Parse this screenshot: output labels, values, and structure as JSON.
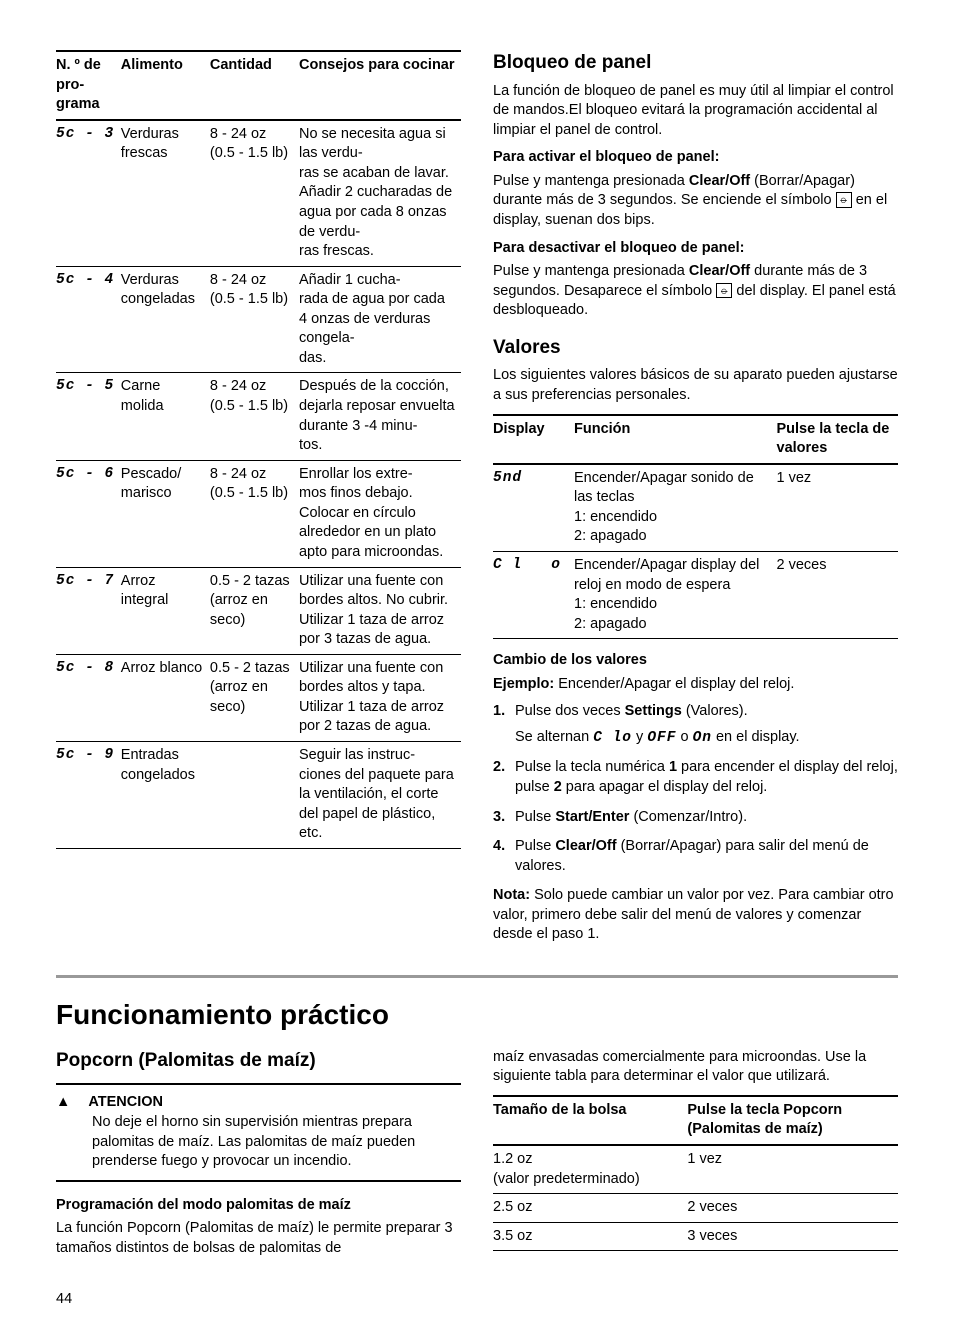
{
  "page_number": "44",
  "programs_table": {
    "headers": [
      "N. º de pro-\ngrama",
      "Alimento",
      "Cantidad",
      "Consejos para cocinar"
    ],
    "rows": [
      {
        "display": "5c - 3",
        "food": "Verduras frescas",
        "qty": "8 - 24 oz\n(0.5 - 1.5 lb)",
        "tip": "No se necesita agua si las verdu-\nras se acaban de lavar. Añadir 2 cucharadas de agua por cada 8 onzas de verdu-\nras frescas."
      },
      {
        "display": "5c - 4",
        "food": "Verduras congeladas",
        "qty": "8 - 24 oz\n(0.5 - 1.5 lb)",
        "tip": "Añadir 1 cucha-\nrada de agua por cada 4 onzas de verduras congela-\ndas."
      },
      {
        "display": "5c - 5",
        "food": "Carne molida",
        "qty": "8 - 24 oz\n(0.5 - 1.5 lb)",
        "tip": "Después de la cocción, dejarla reposar envuelta durante 3 -4 minu-\ntos."
      },
      {
        "display": "5c - 6",
        "food": "Pescado/ marisco",
        "qty": "8 - 24 oz\n(0.5 - 1.5 lb)",
        "tip": "Enrollar los extre-\nmos finos debajo. Colocar en círculo alrededor en un plato apto para microondas."
      },
      {
        "display": "5c - 7",
        "food": "Arroz integral",
        "qty": "0.5 - 2 tazas (arroz en seco)",
        "tip": "Utilizar una fuente con bordes altos. No cubrir. Utilizar 1 taza de arroz por 3 tazas de agua."
      },
      {
        "display": "5c - 8",
        "food": "Arroz blanco",
        "qty": "0.5 - 2 tazas (arroz en seco)",
        "tip": "Utilizar una fuente con bordes altos y tapa. Utilizar 1 taza de arroz por 2 tazas de agua."
      },
      {
        "display": "5c - 9",
        "food": "Entradas congelados",
        "qty": "",
        "tip": "Seguir las instruc-\nciones del paquete para la ventilación, el corte del papel de plástico, etc."
      }
    ]
  },
  "panel_lock": {
    "title": "Bloqueo de panel",
    "intro": "La función de bloqueo de panel es muy útil al limpiar el control de mandos.El bloqueo evitará la programación accidental al limpiar el panel de control.",
    "activate_head": "Para activar el bloqueo de panel:",
    "activate_pre": "Pulse y mantenga presionada ",
    "activate_bold": "Clear/Off",
    "activate_mid": " (Borrar/Apagar) durante más de 3 segundos. Se enciende el símbolo ",
    "activate_post": " en el display, suenan dos bips.",
    "deactivate_head": "Para desactivar el bloqueo de panel:",
    "deactivate_pre": "Pulse y mantenga presionada ",
    "deactivate_bold": "Clear/Off",
    "deactivate_mid": " durante más de 3 segundos. Desaparece el símbolo ",
    "deactivate_post": " del display. El panel está desbloqueado."
  },
  "valores": {
    "title": "Valores",
    "intro": "Los siguientes valores básicos de su aparato pueden ajustarse a sus preferencias personales.",
    "headers": [
      "Display",
      "Función",
      "Pulse la tecla de valores"
    ],
    "rows": [
      {
        "display": "5nd",
        "func": "Encender/Apagar sonido de las teclas\n1: encendido\n2: apagado",
        "press": "1 vez"
      },
      {
        "display": "C l   o",
        "func": "Encender/Apagar display del reloj en modo de espera\n1: encendido\n2: apagado",
        "press": "2 veces"
      }
    ],
    "cambio_head": "Cambio de los valores",
    "ejemplo_label": "Ejemplo:",
    "ejemplo_text": " Encender/Apagar el display del reloj.",
    "steps": {
      "s1a": "Pulse dos veces ",
      "s1bold": "Settings",
      "s1b": " (Valores).",
      "s1sub_a": "Se alternan ",
      "s1sub_b": " y ",
      "s1sub_c": " o ",
      "s1sub_d": " en el display.",
      "seg_clo": "C lo",
      "seg_off": "OFF",
      "seg_on": "On",
      "s2a": "Pulse la tecla numérica ",
      "s2bold1": "1",
      "s2b": " para encender el display del reloj, pulse ",
      "s2bold2": "2",
      "s2c": " para apagar el display del reloj.",
      "s3a": "Pulse ",
      "s3bold": "Start/Enter",
      "s3b": " (Comenzar/Intro).",
      "s4a": "Pulse ",
      "s4bold": "Clear/Off",
      "s4b": " (Borrar/Apagar) para salir del menú de valores."
    },
    "nota_label": "Nota:",
    "nota_text": "  Solo puede cambiar un valor por vez. Para cambiar otro valor, primero debe salir del menú de valores y comenzar desde el paso 1."
  },
  "practico": {
    "title": "Funcionamiento práctico",
    "popcorn_title": "Popcorn (Palomitas de maíz)",
    "atencion_label": "ATENCION",
    "atencion_text": "No deje el horno sin supervisión mientras prepara palomitas de maíz. Las palomitas de maíz pueden prenderse fuego y provocar un incendio.",
    "prog_head": "Programación del modo palomitas de maíz",
    "prog_text": "La función Popcorn (Palomitas de maíz) le permite preparar 3 tamaños distintos de bolsas de palomitas de",
    "right_text": "maíz envasadas comercialmente para microondas. Use la siguiente tabla para determinar el valor que utilizará.",
    "table_headers": [
      "Tamaño de la bolsa",
      "Pulse la tecla Popcorn (Palomitas de maíz)"
    ],
    "table_rows": [
      {
        "size": "1.2 oz\n(valor predeterminado)",
        "press": "1 vez"
      },
      {
        "size": "2.5 oz",
        "press": "2 veces"
      },
      {
        "size": "3.5 oz",
        "press": "3 veces"
      }
    ]
  }
}
